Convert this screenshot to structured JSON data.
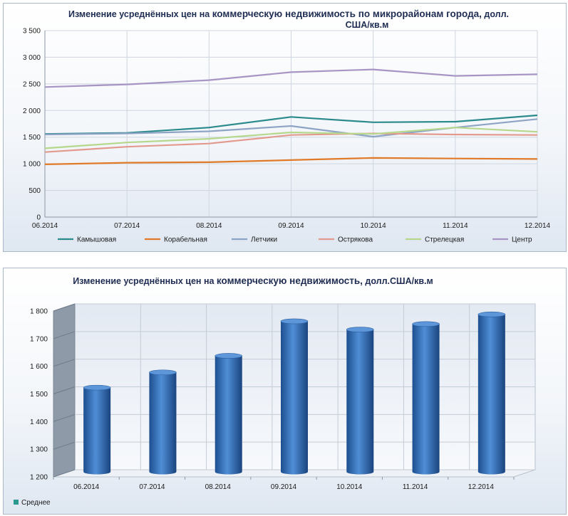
{
  "chart_data": [
    {
      "type": "line",
      "title_part1": "Изменение усреднённых цен на ",
      "title_part2": "коммерческую недвижимость по микрорайонам города,",
      "title_part3": " долл.",
      "title_line2": "США/кв.м",
      "categories": [
        "06.2014",
        "07.2014",
        "08.2014",
        "09.2014",
        "10.2014",
        "11.2014",
        "12.2014"
      ],
      "ylim": [
        0,
        3500
      ],
      "yticks": [
        0,
        500,
        1000,
        1500,
        2000,
        2500,
        3000,
        3500
      ],
      "ytick_labels": [
        "0",
        "500",
        "1 000",
        "1 500",
        "2 000",
        "2 500",
        "3 000",
        "3 500"
      ],
      "grid": true,
      "legend_position": "bottom",
      "series": [
        {
          "name": "Камышовая",
          "color": "#2a8a8c",
          "values": [
            1560,
            1580,
            1680,
            1880,
            1780,
            1790,
            1910
          ]
        },
        {
          "name": "Корабельная",
          "color": "#e07a28",
          "values": [
            990,
            1020,
            1030,
            1070,
            1110,
            1100,
            1090
          ]
        },
        {
          "name": "Летчики",
          "color": "#8ea4c4",
          "values": [
            1550,
            1570,
            1610,
            1710,
            1510,
            1680,
            1840
          ]
        },
        {
          "name": "Острякова",
          "color": "#e39a8e",
          "values": [
            1220,
            1320,
            1380,
            1540,
            1570,
            1550,
            1540
          ]
        },
        {
          "name": "Стрелецкая",
          "color": "#b6d88c",
          "values": [
            1290,
            1400,
            1470,
            1590,
            1560,
            1680,
            1600
          ]
        },
        {
          "name": "Центр",
          "color": "#a795c4",
          "values": [
            2440,
            2490,
            2570,
            2720,
            2770,
            2650,
            2680
          ]
        }
      ]
    },
    {
      "type": "bar",
      "title_part1": "Изменение усреднённых цен на ",
      "title_part2": "коммерческую недвижимость,",
      "title_part3": " долл.США/кв.м",
      "categories": [
        "06.2014",
        "07.2014",
        "08.2014",
        "09.2014",
        "10.2014",
        "11.2014",
        "12.2014"
      ],
      "ylim": [
        1200,
        1800
      ],
      "yticks": [
        1200,
        1300,
        1400,
        1500,
        1600,
        1700,
        1800
      ],
      "ytick_labels": [
        "1 200",
        "1 300",
        "1 400",
        "1 500",
        "1 600",
        "1 700",
        "1 800"
      ],
      "grid": true,
      "legend_position": "bottom-left",
      "series": [
        {
          "name": "Среднее",
          "color": "#2e6ab4",
          "values": [
            1510,
            1565,
            1625,
            1750,
            1720,
            1740,
            1775
          ]
        }
      ]
    }
  ]
}
